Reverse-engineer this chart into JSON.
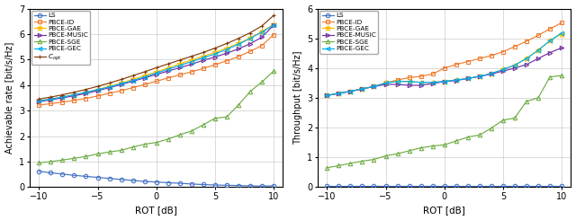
{
  "xvals": [
    -10,
    -9,
    -8,
    -7,
    -6,
    -5,
    -4,
    -3,
    -2,
    -1,
    0,
    1,
    2,
    3,
    4,
    5,
    6,
    7,
    8,
    9,
    10
  ],
  "left": {
    "ylabel": "Achievable rate [bit/s/Hz]",
    "xlabel": "ROT [dB]",
    "ylim": [
      0,
      7
    ],
    "yticks": [
      0,
      1,
      2,
      3,
      4,
      5,
      6,
      7
    ],
    "LS": [
      0.62,
      0.56,
      0.51,
      0.46,
      0.42,
      0.38,
      0.34,
      0.3,
      0.26,
      0.22,
      0.2,
      0.17,
      0.15,
      0.12,
      0.1,
      0.08,
      0.07,
      0.06,
      0.05,
      0.04,
      0.05
    ],
    "PBCE_ID": [
      3.22,
      3.27,
      3.33,
      3.4,
      3.48,
      3.57,
      3.68,
      3.78,
      3.9,
      4.02,
      4.15,
      4.28,
      4.4,
      4.52,
      4.65,
      4.8,
      4.95,
      5.12,
      5.32,
      5.55,
      5.98
    ],
    "PBCE_GAE": [
      3.38,
      3.45,
      3.53,
      3.62,
      3.72,
      3.83,
      3.95,
      4.08,
      4.22,
      4.37,
      4.52,
      4.67,
      4.83,
      4.98,
      5.13,
      5.28,
      5.45,
      5.63,
      5.85,
      6.1,
      6.38
    ],
    "PBCE_MUSIC": [
      3.35,
      3.42,
      3.5,
      3.58,
      3.67,
      3.78,
      3.9,
      4.02,
      4.15,
      4.28,
      4.42,
      4.55,
      4.68,
      4.82,
      4.97,
      5.1,
      5.25,
      5.42,
      5.62,
      5.88,
      6.35
    ],
    "PBCE_SGE": [
      0.95,
      1.0,
      1.06,
      1.13,
      1.2,
      1.3,
      1.38,
      1.44,
      1.57,
      1.68,
      1.75,
      1.88,
      2.05,
      2.2,
      2.44,
      2.7,
      2.75,
      3.22,
      3.75,
      4.12,
      4.55
    ],
    "PBCE_GEC": [
      3.38,
      3.45,
      3.53,
      3.62,
      3.72,
      3.82,
      3.93,
      4.05,
      4.18,
      4.32,
      4.47,
      4.62,
      4.77,
      4.92,
      5.07,
      5.22,
      5.4,
      5.6,
      5.83,
      6.08,
      6.35
    ],
    "C_opt": [
      3.45,
      3.53,
      3.62,
      3.72,
      3.83,
      3.95,
      4.08,
      4.22,
      4.37,
      4.52,
      4.68,
      4.83,
      4.98,
      5.13,
      5.28,
      5.45,
      5.63,
      5.83,
      6.05,
      6.32,
      6.73
    ]
  },
  "right": {
    "ylabel": "Throughput [bit/s/Hz]",
    "xlabel": "ROT [dB]",
    "ylim": [
      0,
      6
    ],
    "yticks": [
      0,
      1,
      2,
      3,
      4,
      5,
      6
    ],
    "LS": [
      0.04,
      0.04,
      0.04,
      0.04,
      0.04,
      0.04,
      0.04,
      0.04,
      0.04,
      0.04,
      0.04,
      0.04,
      0.04,
      0.04,
      0.04,
      0.04,
      0.04,
      0.04,
      0.04,
      0.04,
      0.04
    ],
    "PBCE_ID": [
      3.08,
      3.15,
      3.22,
      3.3,
      3.38,
      3.5,
      3.6,
      3.68,
      3.72,
      3.8,
      4.0,
      4.12,
      4.22,
      4.32,
      4.42,
      4.55,
      4.72,
      4.9,
      5.1,
      5.32,
      5.52
    ],
    "PBCE_GAE": [
      3.08,
      3.15,
      3.22,
      3.3,
      3.38,
      3.5,
      3.55,
      3.55,
      3.52,
      3.52,
      3.55,
      3.6,
      3.65,
      3.72,
      3.82,
      3.95,
      4.1,
      4.32,
      4.6,
      4.92,
      5.15
    ],
    "PBCE_MUSIC": [
      3.08,
      3.15,
      3.22,
      3.3,
      3.38,
      3.45,
      3.45,
      3.42,
      3.42,
      3.48,
      3.55,
      3.58,
      3.65,
      3.72,
      3.8,
      3.9,
      4.0,
      4.12,
      4.32,
      4.52,
      4.68
    ],
    "PBCE_SGE": [
      0.65,
      0.72,
      0.8,
      0.87,
      0.93,
      1.05,
      1.12,
      1.22,
      1.32,
      1.38,
      1.42,
      1.55,
      1.68,
      1.75,
      1.98,
      2.25,
      2.32,
      2.88,
      3.0,
      3.7,
      3.75
    ],
    "PBCE_GEC": [
      3.08,
      3.15,
      3.22,
      3.3,
      3.38,
      3.5,
      3.55,
      3.55,
      3.52,
      3.52,
      3.55,
      3.6,
      3.65,
      3.72,
      3.82,
      3.95,
      4.1,
      4.32,
      4.6,
      4.92,
      5.18
    ]
  },
  "colors": {
    "LS": "#4472c4",
    "PBCE_ID": "#ed7d31",
    "PBCE_GAE": "#ffc000",
    "PBCE_MUSIC": "#7030a0",
    "PBCE_SGE": "#70ad47",
    "PBCE_GEC": "#00b0f0",
    "C_opt": "#843c0c"
  },
  "markers": {
    "LS": "o",
    "PBCE_ID": "s",
    "PBCE_GAE": "*",
    "PBCE_MUSIC": ">",
    "PBCE_SGE": "^",
    "PBCE_GEC": "<",
    "C_opt": "+"
  },
  "mfc": {
    "LS": "none",
    "PBCE_ID": "none",
    "PBCE_GAE": "auto",
    "PBCE_MUSIC": "none",
    "PBCE_SGE": "none",
    "PBCE_GEC": "none",
    "C_opt": "auto"
  },
  "labels_left": [
    "LS",
    "PBCE-ID",
    "PBCE-GAE",
    "PBCE-MUSIC",
    "PBCE-SGE",
    "PBCE-GEC",
    "$C_{opt}$"
  ],
  "labels_right": [
    "LS",
    "PBCE-ID",
    "PBCE-GAE",
    "PBCE-MUSIC",
    "PBCE-SGE",
    "PBCE-GEC"
  ],
  "series_left": [
    "LS",
    "PBCE_ID",
    "PBCE_GAE",
    "PBCE_MUSIC",
    "PBCE_SGE",
    "PBCE_GEC",
    "C_opt"
  ],
  "series_right": [
    "LS",
    "PBCE_ID",
    "PBCE_GAE",
    "PBCE_MUSIC",
    "PBCE_SGE",
    "PBCE_GEC"
  ]
}
